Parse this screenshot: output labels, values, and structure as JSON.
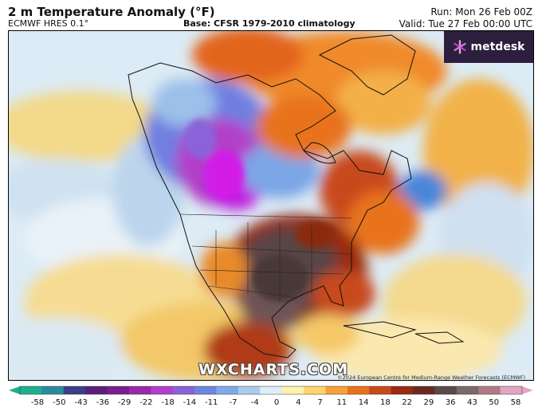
{
  "header": {
    "title": "2 m Temperature Anomaly (°F)",
    "model": "ECMWF HRES 0.1°",
    "base": "Base: CFSR 1979-2010 climatology",
    "run": "Run: Mon 26 Feb 00Z",
    "valid": "Valid: Tue 27 Feb 00:00 UTC"
  },
  "logo": {
    "text": "metdesk",
    "icon": "metdesk-star-icon"
  },
  "watermark": "WXCHARTS.COM",
  "credit": "©2024 European Centre for Medium-Range Weather Forecasts (ECMWF)",
  "colorbar": {
    "labels": [
      "-58",
      "-50",
      "-43",
      "-36",
      "-29",
      "-22",
      "-18",
      "-14",
      "-11",
      "-7",
      "-4",
      "0",
      "4",
      "7",
      "11",
      "14",
      "18",
      "22",
      "29",
      "36",
      "43",
      "50",
      "58"
    ],
    "colors": [
      "#1fae8f",
      "#2a8c9b",
      "#3a3f8a",
      "#5b1f7a",
      "#7b1f8f",
      "#9b2aa8",
      "#b23fc9",
      "#8a63d8",
      "#6c86e0",
      "#7faae8",
      "#a9cbee",
      "#dfeef8",
      "#fff2b0",
      "#ffd66b",
      "#f5a23a",
      "#e8731f",
      "#c84a1a",
      "#9a2a10",
      "#6a2a22",
      "#5a4a4a",
      "#7a6a6a",
      "#b07a86",
      "#e2a6c2"
    ]
  },
  "colors": {
    "ocean_light": "#dcebf5",
    "warm_core": "#4a3838",
    "cold_core": "#c01ae0"
  }
}
